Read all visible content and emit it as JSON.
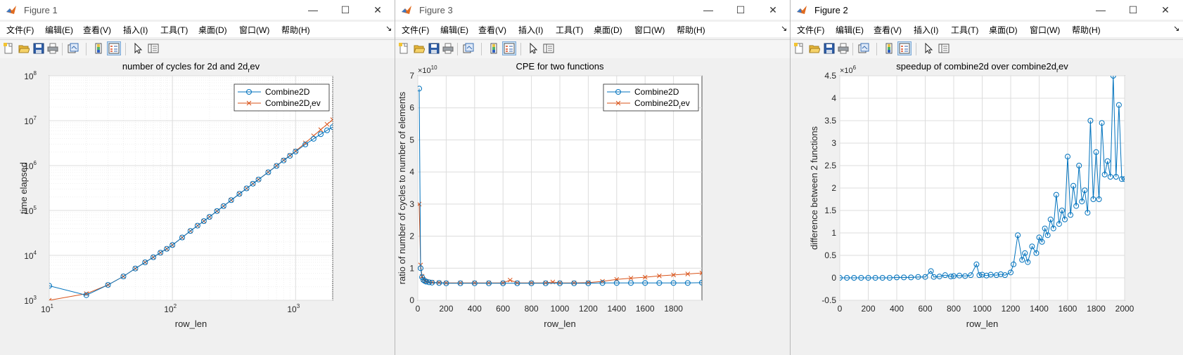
{
  "menu_labels": [
    "文件(F)",
    "编辑(E)",
    "查看(V)",
    "插入(I)",
    "工具(T)",
    "桌面(D)",
    "窗口(W)",
    "帮助(H)"
  ],
  "menu_overflow": "↘",
  "window_buttons": {
    "minimize": "—",
    "maximize": "☐",
    "close": "✕"
  },
  "colors": {
    "series1": "#0072bd",
    "series2": "#d95319",
    "grid": "#dcdcdc",
    "axes_bg": "#ffffff"
  },
  "toolbar_icons": [
    "new-figure-icon",
    "open-file-icon",
    "save-icon",
    "print-icon",
    "link-plot-icon",
    "insert-colorbar-icon",
    "insert-legend-icon",
    "edit-plot-icon",
    "property-inspector-icon"
  ],
  "windows": [
    {
      "title": "Figure 1",
      "active": false,
      "chart_data": {
        "type": "line",
        "title": "number of cycles for 2d and 2d",
        "title_sub": "r",
        "title_tail": "ev",
        "xlabel": "row_len",
        "ylabel": "time elapsed",
        "xscale": "log",
        "yscale": "log",
        "xlim": [
          10,
          2000
        ],
        "ylim": [
          1000,
          100000000
        ],
        "xtick_bases": [
          "10",
          "10",
          "10"
        ],
        "xtick_exps": [
          "1",
          "2",
          "3"
        ],
        "ytick_bases": [
          "10",
          "10",
          "10",
          "10",
          "10",
          "10"
        ],
        "ytick_exps": [
          "3",
          "4",
          "5",
          "6",
          "7",
          "8"
        ],
        "grid": "major and minor",
        "legend_position": "top-right",
        "legend": [
          {
            "label": "Combine2D",
            "sub": "",
            "tail": "",
            "marker": "circle"
          },
          {
            "label": "Combine2D",
            "sub": "r",
            "tail": "ev",
            "marker": "x"
          }
        ],
        "series": [
          {
            "name": "Combine2D",
            "marker": "circle",
            "x": [
              10,
              20,
              30,
              40,
              50,
              60,
              70,
              80,
              90,
              100,
              120,
              140,
              160,
              180,
              200,
              230,
              260,
              300,
              350,
              400,
              450,
              500,
              600,
              700,
              800,
              900,
              1000,
              1200,
              1400,
              1600,
              1800,
              2000
            ],
            "y": [
              2100,
              1300,
              2200,
              3400,
              5100,
              7000,
              9100,
              11500,
              14000,
              17000,
              25000,
              35000,
              46000,
              58000,
              72000,
              97000,
              125000,
              170000,
              235000,
              310000,
              395000,
              490000,
              710000,
              980000,
              1300000,
              1650000,
              2050000,
              2950000,
              3950000,
              5000000,
              6100000,
              7200000
            ]
          },
          {
            "name": "Combine2Drev",
            "marker": "x",
            "x": [
              10,
              20,
              30,
              40,
              50,
              60,
              70,
              80,
              90,
              100,
              120,
              140,
              160,
              180,
              200,
              230,
              260,
              300,
              350,
              400,
              450,
              500,
              600,
              700,
              800,
              900,
              1000,
              1200,
              1400,
              1600,
              1800,
              2000
            ],
            "y": [
              1000,
              1400,
              2200,
              3400,
              5100,
              7000,
              9100,
              11500,
              14000,
              17000,
              25000,
              35000,
              46000,
              58000,
              72000,
              97000,
              125000,
              170000,
              235000,
              310000,
              395000,
              490000,
              715000,
              990000,
              1320000,
              1680000,
              2100000,
              3200000,
              4600000,
              6300000,
              8300000,
              10500000
            ]
          }
        ]
      }
    },
    {
      "title": "Figure 3",
      "active": false,
      "chart_data": {
        "type": "line",
        "title": "CPE for two functions",
        "xlabel": "row_len",
        "ylabel": "ratio of number of cycles to number of elements",
        "exponent_label": "×10",
        "exponent_value": "10",
        "xlim": [
          0,
          2000
        ],
        "ylim": [
          0,
          70000000000
        ],
        "xticks": [
          "0",
          "200",
          "400",
          "600",
          "800",
          "1000",
          "1200",
          "1400",
          "1600",
          "1800"
        ],
        "yticks": [
          "0",
          "1",
          "2",
          "3",
          "4",
          "5",
          "6",
          "7"
        ],
        "grid": true,
        "legend_position": "top-right",
        "legend": [
          {
            "label": "Combine2D",
            "sub": "",
            "tail": "",
            "marker": "circle"
          },
          {
            "label": "Combine2D",
            "sub": "r",
            "tail": "ev",
            "marker": "x"
          }
        ],
        "series": [
          {
            "name": "Combine2D",
            "marker": "circle",
            "x": [
              10,
              20,
              30,
              40,
              50,
              60,
              80,
              100,
              150,
              200,
              300,
              400,
              500,
              600,
              700,
              800,
              900,
              1000,
              1100,
              1200,
              1300,
              1400,
              1500,
              1600,
              1700,
              1800,
              1900,
              2000
            ],
            "y": [
              66000000000,
              10000000000,
              7200000000,
              6300000000,
              6000000000,
              5800000000,
              5600000000,
              5500000000,
              5400000000,
              5300000000,
              5300000000,
              5300000000,
              5300000000,
              5300000000,
              5300000000,
              5300000000,
              5300000000,
              5300000000,
              5300000000,
              5300000000,
              5400000000,
              5400000000,
              5400000000,
              5400000000,
              5400000000,
              5400000000,
              5400000000,
              5500000000
            ]
          },
          {
            "name": "Combine2Drev",
            "marker": "x",
            "x": [
              10,
              20,
              30,
              40,
              50,
              60,
              80,
              100,
              150,
              200,
              300,
              400,
              500,
              600,
              650,
              700,
              800,
              900,
              950,
              1000,
              1100,
              1200,
              1300,
              1400,
              1500,
              1600,
              1700,
              1800,
              1900,
              2000
            ],
            "y": [
              30000000000,
              11000000000,
              7500000000,
              6500000000,
              6100000000,
              5900000000,
              5700000000,
              5600000000,
              5500000000,
              5400000000,
              5400000000,
              5400000000,
              5400000000,
              5400000000,
              6300000000,
              5400000000,
              5400000000,
              5400000000,
              5700000000,
              5400000000,
              5400000000,
              5500000000,
              5900000000,
              6500000000,
              6900000000,
              7200000000,
              7600000000,
              7900000000,
              8200000000,
              8500000000
            ]
          }
        ]
      }
    },
    {
      "title": "Figure 2",
      "active": true,
      "chart_data": {
        "type": "line",
        "title": "speedup of combine2d over combine2d",
        "title_sub": "r",
        "title_tail": "ev",
        "xlabel": "row_len",
        "ylabel": "difference between 2 functions",
        "exponent_label": "×10",
        "exponent_value": "6",
        "xlim": [
          0,
          2000
        ],
        "ylim": [
          -500000,
          4500000
        ],
        "xticks": [
          "0",
          "200",
          "400",
          "600",
          "800",
          "1000",
          "1200",
          "1400",
          "1600",
          "1800",
          "2000"
        ],
        "yticks": [
          "-0.5",
          "0",
          "0.5",
          "1",
          "1.5",
          "2",
          "2.5",
          "3",
          "3.5",
          "4",
          "4.5"
        ],
        "grid": true,
        "series": [
          {
            "name": "",
            "marker": "circle",
            "x": [
              0,
              50,
              100,
              150,
              200,
              250,
              300,
              350,
              400,
              450,
              500,
              550,
              600,
              640,
              660,
              700,
              740,
              780,
              800,
              840,
              880,
              920,
              960,
              980,
              1000,
              1030,
              1060,
              1100,
              1130,
              1160,
              1200,
              1220,
              1250,
              1280,
              1300,
              1320,
              1350,
              1380,
              1400,
              1420,
              1440,
              1460,
              1480,
              1500,
              1520,
              1540,
              1560,
              1580,
              1600,
              1620,
              1640,
              1660,
              1680,
              1700,
              1720,
              1740,
              1760,
              1780,
              1800,
              1820,
              1840,
              1860,
              1880,
              1900,
              1920,
              1940,
              1960,
              1980,
              2000
            ],
            "y": [
              0,
              0,
              0,
              0,
              0,
              0,
              0,
              0,
              10000,
              10000,
              10000,
              20000,
              20000,
              150000,
              20000,
              30000,
              60000,
              30000,
              40000,
              50000,
              40000,
              60000,
              300000,
              60000,
              70000,
              50000,
              70000,
              60000,
              80000,
              60000,
              120000,
              300000,
              950000,
              400000,
              550000,
              350000,
              700000,
              550000,
              900000,
              800000,
              1100000,
              950000,
              1300000,
              1100000,
              1850000,
              1200000,
              1500000,
              1300000,
              2700000,
              1400000,
              2050000,
              1600000,
              2500000,
              1700000,
              1950000,
              1450000,
              3500000,
              1750000,
              2800000,
              1750000,
              3450000,
              2300000,
              2600000,
              2250000,
              4500000,
              2250000,
              3850000,
              2200000,
              2200000
            ]
          }
        ]
      }
    }
  ]
}
